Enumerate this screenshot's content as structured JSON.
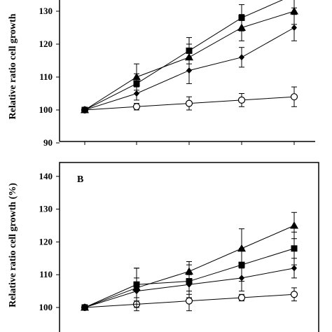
{
  "chart_data": [
    {
      "type": "line",
      "panel_label": "",
      "ylabel": "Relative ratio cell growth",
      "ylim": [
        90,
        140
      ],
      "yticks": [
        90,
        100,
        110,
        120,
        130
      ],
      "x": [
        0,
        1,
        2,
        3,
        4
      ],
      "grid": false,
      "series": [
        {
          "marker": "open-circle",
          "values": [
            100,
            101,
            102,
            103,
            104
          ],
          "errors": [
            0,
            1,
            2,
            2,
            3
          ]
        },
        {
          "marker": "diamond",
          "values": [
            100,
            105,
            112,
            116,
            125
          ],
          "errors": [
            0,
            2,
            4,
            3,
            4
          ]
        },
        {
          "marker": "square",
          "values": [
            100,
            108,
            118,
            128,
            135
          ],
          "errors": [
            0,
            3,
            4,
            4,
            4
          ]
        },
        {
          "marker": "triangle",
          "values": [
            100,
            110,
            116,
            125,
            130
          ],
          "errors": [
            0,
            4,
            4,
            4,
            4
          ]
        }
      ]
    },
    {
      "type": "line",
      "panel_label": "B",
      "ylabel": "Relative ratio cell growth (%)",
      "ylim": [
        95,
        145
      ],
      "yticks": [
        100,
        110,
        120,
        130,
        140
      ],
      "x": [
        0,
        1,
        2,
        3,
        4
      ],
      "grid": false,
      "series": [
        {
          "marker": "open-circle",
          "values": [
            100,
            101,
            102,
            103,
            104
          ],
          "errors": [
            0,
            2,
            3,
            1,
            2
          ]
        },
        {
          "marker": "diamond",
          "values": [
            100,
            105,
            107,
            109,
            112
          ],
          "errors": [
            0,
            4,
            3,
            4,
            3
          ]
        },
        {
          "marker": "square",
          "values": [
            100,
            107,
            108,
            113,
            118
          ],
          "errors": [
            0,
            5,
            5,
            5,
            5
          ]
        },
        {
          "marker": "triangle",
          "values": [
            100,
            106,
            111,
            118,
            125
          ],
          "errors": [
            0,
            6,
            3,
            6,
            4
          ]
        }
      ]
    }
  ]
}
